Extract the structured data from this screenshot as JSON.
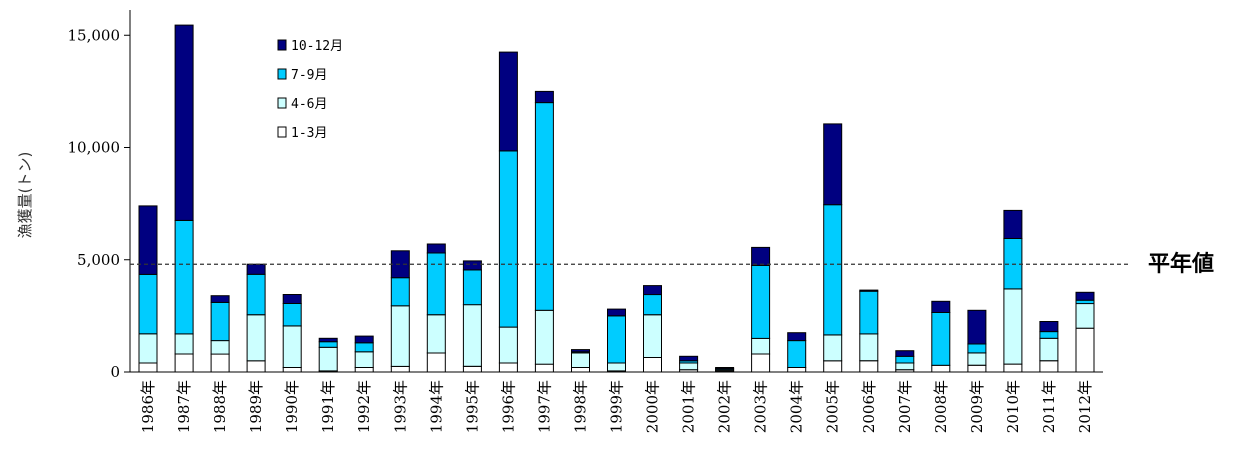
{
  "chart_data": {
    "type": "bar",
    "stacked": true,
    "ylabel": "漁獲量(トン)",
    "ylim": [
      0,
      16000
    ],
    "yticks": [
      0,
      5000,
      10000,
      15000
    ],
    "ytick_labels": [
      "0",
      "5,000",
      "10,000",
      "15,000"
    ],
    "categories": [
      "1986年",
      "1987年",
      "1988年",
      "1989年",
      "1990年",
      "1991年",
      "1992年",
      "1993年",
      "1994年",
      "1995年",
      "1996年",
      "1997年",
      "1998年",
      "1999年",
      "2000年",
      "2001年",
      "2002年",
      "2003年",
      "2004年",
      "2005年",
      "2006年",
      "2007年",
      "2008年",
      "2009年",
      "2010年",
      "2011年",
      "2012年"
    ],
    "series": [
      {
        "name": "1-3月",
        "color": "#ffffff",
        "values": [
          400,
          800,
          800,
          500,
          200,
          50,
          200,
          250,
          850,
          250,
          400,
          350,
          200,
          50,
          650,
          100,
          50,
          800,
          200,
          500,
          500,
          100,
          300,
          300,
          350,
          500,
          1950
        ]
      },
      {
        "name": "4-6月",
        "color": "#ccffff",
        "values": [
          1300,
          900,
          600,
          2050,
          1850,
          1050,
          700,
          2700,
          1700,
          2750,
          1600,
          2400,
          650,
          350,
          1900,
          300,
          50,
          700,
          0,
          1150,
          1200,
          300,
          0,
          550,
          3350,
          1000,
          1100
        ]
      },
      {
        "name": "7-9月",
        "color": "#00ccff",
        "values": [
          2650,
          5050,
          1700,
          1800,
          1000,
          250,
          400,
          1250,
          2750,
          1550,
          7850,
          9250,
          50,
          2100,
          900,
          100,
          50,
          3250,
          1200,
          5800,
          1900,
          300,
          2350,
          400,
          2250,
          300,
          150
        ]
      },
      {
        "name": "10-12月",
        "color": "#000080",
        "values": [
          3050,
          8700,
          300,
          450,
          400,
          150,
          300,
          1200,
          400,
          400,
          4400,
          500,
          100,
          300,
          400,
          200,
          50,
          800,
          350,
          3600,
          50,
          250,
          500,
          1500,
          1250,
          450,
          350
        ]
      }
    ],
    "legend_order": [
      "10-12月",
      "7-9月",
      "4-6月",
      "1-3月"
    ],
    "legend_position": "top-left",
    "reference_line": {
      "value": 4800,
      "label": "平年値",
      "style": "dashed"
    },
    "grid": false
  }
}
